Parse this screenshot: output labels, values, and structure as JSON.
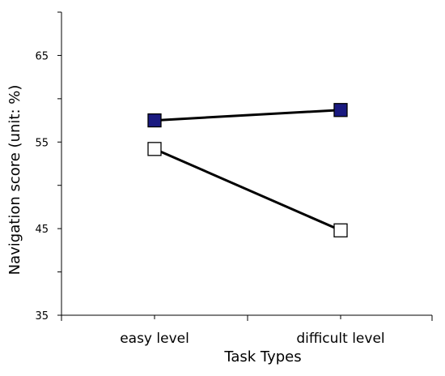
{
  "chart_data": {
    "type": "line",
    "categories": [
      "easy level",
      "difficult level"
    ],
    "series": [
      {
        "values": [
          57.5,
          58.7
        ],
        "marker": "filled-square",
        "marker_fill": "#1a1a80",
        "line_color": "#000000"
      },
      {
        "values": [
          54.2,
          44.8
        ],
        "marker": "open-square",
        "marker_fill": "#ffffff",
        "line_color": "#000000"
      }
    ],
    "xlabel": "Task Types",
    "ylabel": "Navigation score (unit: %)",
    "ylim": [
      35,
      70
    ],
    "yticks": [
      35,
      45,
      55,
      65
    ],
    "ytick_labels": [
      "35",
      "45",
      "55",
      "65"
    ],
    "grid": false,
    "legend": "none"
  }
}
